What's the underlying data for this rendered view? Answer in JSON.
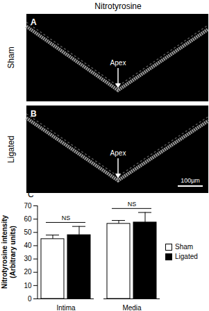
{
  "figure": {
    "title": "Nitrotyrosine",
    "panels": [
      {
        "letter": "A",
        "row_label": "Sham",
        "annotation": "Apex"
      },
      {
        "letter": "B",
        "row_label": "Ligated",
        "annotation": "Apex",
        "scale_bar": "100µm"
      }
    ],
    "chart_letter": "C"
  },
  "chart_data": {
    "type": "bar",
    "y_label": [
      "Nitrotyrosine intensity",
      "(Arbitrary units)"
    ],
    "categories": [
      "Intima",
      "Media"
    ],
    "series": [
      {
        "name": "Sham",
        "color": "#ffffff",
        "values": [
          45,
          56.5
        ],
        "errors": [
          3,
          2.5
        ]
      },
      {
        "name": "Ligated",
        "color": "#000000",
        "values": [
          48,
          57.5
        ],
        "errors": [
          6.5,
          7.5
        ]
      }
    ],
    "annotations": [
      {
        "category": "Intima",
        "text": "NS"
      },
      {
        "category": "Media",
        "text": "NS"
      }
    ],
    "ylim": [
      0,
      70
    ],
    "yticks": [
      0,
      10,
      20,
      30,
      40,
      50,
      60,
      70
    ],
    "legend": "right"
  }
}
